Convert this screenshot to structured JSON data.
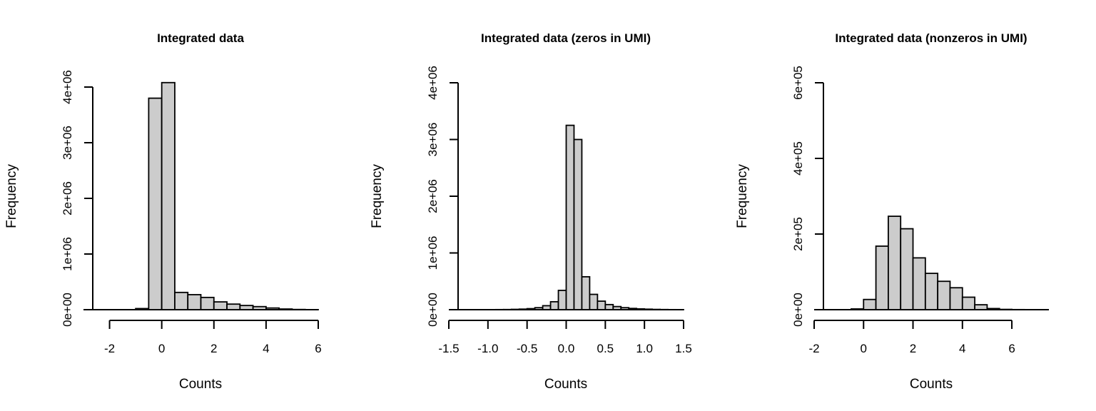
{
  "colors": {
    "bar_fill": "#cccccc",
    "bar_stroke": "#000000",
    "background": "#ffffff"
  },
  "chart_data": [
    {
      "type": "bar",
      "title": "Integrated data",
      "xlabel": "Counts",
      "ylabel": "Frequency",
      "xlim": [
        -3,
        6
      ],
      "ylim": [
        0,
        4000000
      ],
      "xticks": [
        "-2",
        "0",
        "2",
        "4",
        "6"
      ],
      "yticks": [
        "0e+00",
        "1e+06",
        "2e+06",
        "3e+06",
        "4e+06"
      ],
      "bin_width": 0.5,
      "bins": [
        {
          "x0": -1.0,
          "x1": -0.5,
          "count": 20000
        },
        {
          "x0": -0.5,
          "x1": 0.0,
          "count": 3800000
        },
        {
          "x0": 0.0,
          "x1": 0.5,
          "count": 4080000
        },
        {
          "x0": 0.5,
          "x1": 1.0,
          "count": 310000
        },
        {
          "x0": 1.0,
          "x1": 1.5,
          "count": 270000
        },
        {
          "x0": 1.5,
          "x1": 2.0,
          "count": 220000
        },
        {
          "x0": 2.0,
          "x1": 2.5,
          "count": 140000
        },
        {
          "x0": 2.5,
          "x1": 3.0,
          "count": 100000
        },
        {
          "x0": 3.0,
          "x1": 3.5,
          "count": 75000
        },
        {
          "x0": 3.5,
          "x1": 4.0,
          "count": 55000
        },
        {
          "x0": 4.0,
          "x1": 4.5,
          "count": 30000
        },
        {
          "x0": 4.5,
          "x1": 5.0,
          "count": 12000
        },
        {
          "x0": 5.0,
          "x1": 5.5,
          "count": 4000
        },
        {
          "x0": 5.5,
          "x1": 6.0,
          "count": 1000
        }
      ],
      "grid": false,
      "legend": "none"
    },
    {
      "type": "bar",
      "title": "Integrated data (zeros in UMI)",
      "xlabel": "Counts",
      "ylabel": "Frequency",
      "xlim": [
        -1.5,
        1.5
      ],
      "ylim": [
        0,
        4000000
      ],
      "xticks": [
        "-1.5",
        "-1.0",
        "-0.5",
        "0.0",
        "0.5",
        "1.0",
        "1.5"
      ],
      "yticks": [
        "0e+00",
        "1e+06",
        "2e+06",
        "3e+06",
        "4e+06"
      ],
      "bin_width": 0.1,
      "bins": [
        {
          "x0": -1.0,
          "x1": -0.9,
          "count": 1000
        },
        {
          "x0": -0.9,
          "x1": -0.8,
          "count": 2000
        },
        {
          "x0": -0.8,
          "x1": -0.7,
          "count": 3000
        },
        {
          "x0": -0.7,
          "x1": -0.6,
          "count": 6000
        },
        {
          "x0": -0.6,
          "x1": -0.5,
          "count": 10000
        },
        {
          "x0": -0.5,
          "x1": -0.4,
          "count": 18000
        },
        {
          "x0": -0.4,
          "x1": -0.3,
          "count": 35000
        },
        {
          "x0": -0.3,
          "x1": -0.2,
          "count": 70000
        },
        {
          "x0": -0.2,
          "x1": -0.1,
          "count": 140000
        },
        {
          "x0": -0.1,
          "x1": 0.0,
          "count": 340000
        },
        {
          "x0": 0.0,
          "x1": 0.1,
          "count": 3250000
        },
        {
          "x0": 0.1,
          "x1": 0.2,
          "count": 3000000
        },
        {
          "x0": 0.2,
          "x1": 0.3,
          "count": 580000
        },
        {
          "x0": 0.3,
          "x1": 0.4,
          "count": 270000
        },
        {
          "x0": 0.4,
          "x1": 0.5,
          "count": 150000
        },
        {
          "x0": 0.5,
          "x1": 0.6,
          "count": 90000
        },
        {
          "x0": 0.6,
          "x1": 0.7,
          "count": 55000
        },
        {
          "x0": 0.7,
          "x1": 0.8,
          "count": 35000
        },
        {
          "x0": 0.8,
          "x1": 0.9,
          "count": 22000
        },
        {
          "x0": 0.9,
          "x1": 1.0,
          "count": 14000
        },
        {
          "x0": 1.0,
          "x1": 1.1,
          "count": 9000
        },
        {
          "x0": 1.1,
          "x1": 1.2,
          "count": 5000
        },
        {
          "x0": 1.2,
          "x1": 1.3,
          "count": 3000
        },
        {
          "x0": 1.3,
          "x1": 1.4,
          "count": 1500
        },
        {
          "x0": 1.4,
          "x1": 1.5,
          "count": 800
        }
      ],
      "grid": false,
      "legend": "none"
    },
    {
      "type": "bar",
      "title": "Integrated data (nonzeros in UMI)",
      "xlabel": "Counts",
      "ylabel": "Frequency",
      "xlim": [
        -2,
        7.5
      ],
      "ylim": [
        0,
        600000
      ],
      "xticks": [
        "-2",
        "0",
        "2",
        "4",
        "6"
      ],
      "yticks": [
        "0e+00",
        "2e+05",
        "4e+05",
        "6e+05"
      ],
      "bin_width": 0.5,
      "bins": [
        {
          "x0": -0.5,
          "x1": 0.0,
          "count": 2000
        },
        {
          "x0": 0.0,
          "x1": 0.5,
          "count": 27000
        },
        {
          "x0": 0.5,
          "x1": 1.0,
          "count": 168000
        },
        {
          "x0": 1.0,
          "x1": 1.5,
          "count": 247000
        },
        {
          "x0": 1.5,
          "x1": 2.0,
          "count": 214000
        },
        {
          "x0": 2.0,
          "x1": 2.5,
          "count": 137000
        },
        {
          "x0": 2.5,
          "x1": 3.0,
          "count": 96000
        },
        {
          "x0": 3.0,
          "x1": 3.5,
          "count": 75000
        },
        {
          "x0": 3.5,
          "x1": 4.0,
          "count": 58000
        },
        {
          "x0": 4.0,
          "x1": 4.5,
          "count": 33000
        },
        {
          "x0": 4.5,
          "x1": 5.0,
          "count": 13000
        },
        {
          "x0": 5.0,
          "x1": 5.5,
          "count": 3000
        },
        {
          "x0": 5.5,
          "x1": 6.0,
          "count": 800
        },
        {
          "x0": 6.0,
          "x1": 6.5,
          "count": 300
        }
      ],
      "grid": false,
      "legend": "none"
    }
  ]
}
